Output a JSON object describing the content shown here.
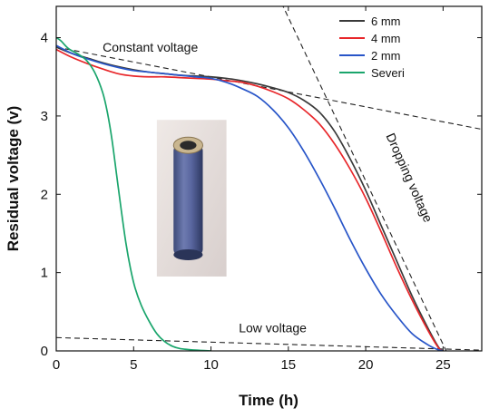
{
  "chart_data": {
    "type": "line",
    "title": "",
    "xlabel": "Time (h)",
    "ylabel": "Residual voltage (v)",
    "xlim": [
      0,
      27.5
    ],
    "ylim": [
      0,
      4.4
    ],
    "xticks": [
      0,
      5,
      10,
      15,
      20,
      25
    ],
    "yticks": [
      0,
      1,
      2,
      3,
      4
    ],
    "grid": false,
    "legend_position": "top-right",
    "series": [
      {
        "name": "6 mm",
        "color": "#3a3a3a",
        "x": [
          0,
          1,
          2,
          3,
          4,
          5,
          6,
          7,
          8,
          9,
          10,
          11,
          12,
          13,
          14,
          15,
          16,
          17,
          18,
          19,
          20,
          21,
          22,
          23,
          24,
          24.7,
          25
        ],
        "y": [
          3.88,
          3.8,
          3.74,
          3.68,
          3.63,
          3.59,
          3.56,
          3.54,
          3.52,
          3.51,
          3.5,
          3.48,
          3.45,
          3.41,
          3.36,
          3.3,
          3.2,
          3.05,
          2.8,
          2.45,
          2.05,
          1.6,
          1.15,
          0.7,
          0.3,
          0.05,
          0.0
        ]
      },
      {
        "name": "4 mm",
        "color": "#e8262a",
        "x": [
          0,
          1,
          2,
          3,
          4,
          5,
          6,
          7,
          8,
          9,
          10,
          11,
          12,
          13,
          14,
          15,
          16,
          17,
          18,
          19,
          20,
          21,
          22,
          23,
          24,
          24.7,
          25
        ],
        "y": [
          3.85,
          3.75,
          3.67,
          3.6,
          3.54,
          3.51,
          3.5,
          3.5,
          3.49,
          3.48,
          3.47,
          3.45,
          3.43,
          3.38,
          3.31,
          3.22,
          3.08,
          2.9,
          2.64,
          2.32,
          1.95,
          1.52,
          1.07,
          0.65,
          0.27,
          0.04,
          0.0
        ]
      },
      {
        "name": "2 mm",
        "color": "#2855c8",
        "x": [
          0,
          1,
          2,
          3,
          4,
          5,
          6,
          7,
          8,
          9,
          10,
          11,
          12,
          13,
          14,
          15,
          16,
          17,
          18,
          19,
          20,
          21,
          22,
          23,
          24,
          24.6,
          25
        ],
        "y": [
          3.9,
          3.8,
          3.73,
          3.67,
          3.62,
          3.58,
          3.56,
          3.54,
          3.52,
          3.5,
          3.48,
          3.43,
          3.35,
          3.25,
          3.08,
          2.85,
          2.55,
          2.2,
          1.82,
          1.42,
          1.05,
          0.72,
          0.45,
          0.22,
          0.08,
          0.02,
          0.0
        ]
      },
      {
        "name": "Severi",
        "color": "#1aa56c",
        "x": [
          0,
          0.3,
          0.8,
          1.5,
          2.0,
          2.5,
          3.0,
          3.3,
          3.6,
          3.9,
          4.2,
          4.5,
          4.8,
          5.1,
          5.5,
          6.0,
          6.5,
          7.0,
          7.5,
          8.0,
          9.0,
          10.0
        ],
        "y": [
          4.0,
          3.96,
          3.86,
          3.78,
          3.7,
          3.55,
          3.3,
          3.05,
          2.7,
          2.25,
          1.8,
          1.38,
          1.05,
          0.8,
          0.58,
          0.38,
          0.22,
          0.12,
          0.06,
          0.03,
          0.01,
          0.0
        ]
      }
    ],
    "guide_lines": [
      {
        "name": "constant-voltage-guideline",
        "x": [
          0,
          27.5
        ],
        "y": [
          3.88,
          2.83
        ]
      },
      {
        "name": "dropping-voltage-guideline",
        "x": [
          14.3,
          25.2
        ],
        "y": [
          4.55,
          0.0
        ]
      },
      {
        "name": "low-voltage-guideline",
        "x": [
          0,
          27.5
        ],
        "y": [
          0.17,
          0.01
        ]
      }
    ],
    "annotations": [
      {
        "name": "annotation-constant-voltage",
        "text": "Constant voltage",
        "x": 3.0,
        "y": 3.82,
        "rotate": 0
      },
      {
        "name": "annotation-low-voltage",
        "text": "Low voltage",
        "x": 11.8,
        "y": 0.24,
        "rotate": 0
      },
      {
        "name": "annotation-dropping-voltage",
        "text": "Dropping voltage",
        "x": 21.3,
        "y": 2.75,
        "rotate": 66
      }
    ],
    "inset_image": {
      "description_icon": "cylindrical-battery-photo",
      "x_range": [
        6.5,
        11.0
      ],
      "y_range": [
        0.95,
        2.95
      ]
    }
  }
}
